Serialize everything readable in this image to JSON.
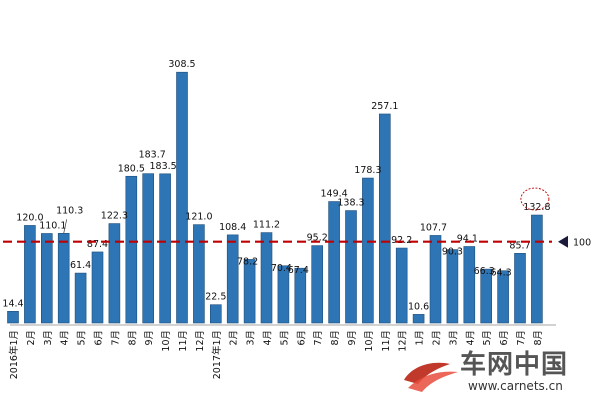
{
  "chart_data": {
    "type": "bar",
    "categories": [
      "2016年1月",
      "2月",
      "3月",
      "4月",
      "5月",
      "6月",
      "7月",
      "8月",
      "9月",
      "10月",
      "11月",
      "12月",
      "2017年1月",
      "2月",
      "3月",
      "4月",
      "5月",
      "6月",
      "7月",
      "8月",
      "9月",
      "10月",
      "11月",
      "12月",
      "1月",
      "2月",
      "3月",
      "4月",
      "5月",
      "6月",
      "7月",
      "8月"
    ],
    "values": [
      14.4,
      120.0,
      110.1,
      110.3,
      61.4,
      87.4,
      122.3,
      180.5,
      183.7,
      183.5,
      308.5,
      121.0,
      22.5,
      108.4,
      78.2,
      111.2,
      70.4,
      67.4,
      95.2,
      149.4,
      138.3,
      178.3,
      257.1,
      92.2,
      10.6,
      107.7,
      90.3,
      94.1,
      66.3,
      64.3,
      85.7,
      132.8
    ],
    "value_labels": [
      "14.4",
      "120.0",
      "110.1",
      "110.3",
      "61.4",
      "87.4",
      "122.3",
      "180.5",
      "183.7",
      "183.5",
      "308.5",
      "121.0",
      "22.5",
      "108.4",
      "78.2",
      "111.2",
      "70.4",
      "67.4",
      "95.2",
      "149.4",
      "138.3",
      "178.3",
      "257.1",
      "92.2",
      "10.6",
      "107.7",
      "90.3",
      "94.1",
      "66.3",
      "64.3",
      "85.7",
      "132.8"
    ],
    "reference_line": {
      "value": 100,
      "label": "100",
      "color": "#c00000",
      "style": "dashed"
    },
    "highlighted_index": 31,
    "ylim": [
      0,
      330
    ],
    "title": "",
    "xlabel": "",
    "ylabel": "",
    "grid": false,
    "bar_color": "#2e75b6"
  },
  "watermark": {
    "name": "车网中国",
    "url": "www.carnets.cn"
  }
}
